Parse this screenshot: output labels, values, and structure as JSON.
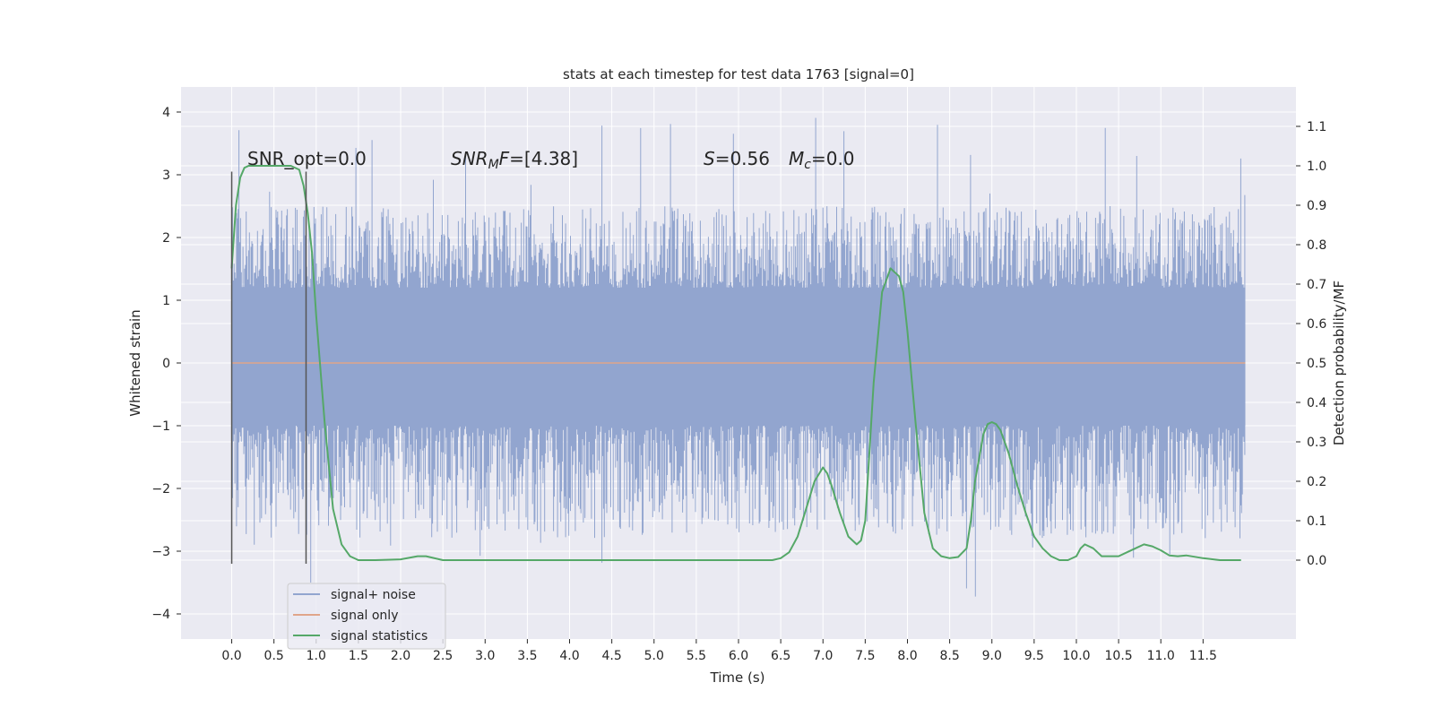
{
  "colors": {
    "background": "#eaeaf2",
    "grid": "#ffffff",
    "noise": "#92a5cf",
    "signal": "#e0a58a",
    "statistics": "#55a868",
    "marker": "#555555",
    "text": "#262626"
  },
  "chart_data": {
    "type": "line",
    "title": "stats at each timestep for test data 1763 [signal=0]",
    "xlabel": "Time (s)",
    "ylabel_left": "Whitened strain",
    "ylabel_right": "Detection probability/MF",
    "xlim": [
      -0.6,
      12.6
    ],
    "ylim_left": [
      -4.4,
      4.4
    ],
    "ylim_right": [
      -0.2,
      1.2
    ],
    "xticks": [
      "0.0",
      "0.5",
      "1.0",
      "1.5",
      "2.0",
      "2.5",
      "3.0",
      "3.5",
      "4.0",
      "4.5",
      "5.0",
      "5.5",
      "6.0",
      "6.5",
      "7.0",
      "7.5",
      "8.0",
      "8.5",
      "9.0",
      "9.5",
      "10.0",
      "10.5",
      "11.0",
      "11.5"
    ],
    "yticks_left": [
      "4",
      "3",
      "2",
      "1",
      "0",
      "−1",
      "−2",
      "−3",
      "−4"
    ],
    "yticks_right": [
      "1.1",
      "1.0",
      "0.9",
      "0.8",
      "0.7",
      "0.6",
      "0.5",
      "0.4",
      "0.3",
      "0.2",
      "0.1",
      "0.0"
    ],
    "grid": true,
    "legend_position": "lower-left",
    "annotations": {
      "snr_opt": "SNR_opt=0.0",
      "snr_mf_sym": "SNR",
      "snr_mf_sub": "M",
      "snr_mf_tail": "F",
      "snr_mf_value": "=[4.38]",
      "s_sym": "S",
      "s_value": "=0.56",
      "mc_sym": "M",
      "mc_sub": "c",
      "mc_value": "=0.0"
    },
    "markers_x": [
      0.0,
      0.88
    ],
    "markers_y": [
      -3.2,
      3.05
    ],
    "series": [
      {
        "name": "signal+ noise",
        "type": "noise",
        "x_range": [
          0.0,
          12.0
        ],
        "core_lower": -1.0,
        "core_upper": 1.2,
        "envelope_min": -4.05,
        "envelope_max": 3.95
      },
      {
        "name": "signal only",
        "type": "constant",
        "x_range": [
          0.0,
          12.0
        ],
        "value": 0.0
      },
      {
        "name": "signal statistics",
        "type": "line",
        "axis": "right",
        "x": [
          0.0,
          0.05,
          0.1,
          0.15,
          0.2,
          0.3,
          0.5,
          0.7,
          0.8,
          0.85,
          0.9,
          0.95,
          1.0,
          1.1,
          1.2,
          1.3,
          1.4,
          1.5,
          1.7,
          2.0,
          2.2,
          2.3,
          2.5,
          3.0,
          4.0,
          4.3,
          4.5,
          5.0,
          5.5,
          6.0,
          6.4,
          6.5,
          6.6,
          6.7,
          6.8,
          6.9,
          7.0,
          7.05,
          7.1,
          7.2,
          7.3,
          7.4,
          7.45,
          7.5,
          7.6,
          7.7,
          7.8,
          7.85,
          7.9,
          7.95,
          8.0,
          8.1,
          8.2,
          8.3,
          8.4,
          8.5,
          8.6,
          8.7,
          8.75,
          8.8,
          8.9,
          8.95,
          9.0,
          9.05,
          9.1,
          9.2,
          9.3,
          9.4,
          9.5,
          9.6,
          9.7,
          9.8,
          9.9,
          10.0,
          10.05,
          10.1,
          10.2,
          10.3,
          10.5,
          10.6,
          10.7,
          10.8,
          10.9,
          11.0,
          11.1,
          11.2,
          11.3,
          11.5,
          11.7,
          11.9,
          11.95
        ],
        "values": [
          0.74,
          0.9,
          0.97,
          0.995,
          1.0,
          1.0,
          1.0,
          1.0,
          0.99,
          0.95,
          0.88,
          0.78,
          0.62,
          0.35,
          0.13,
          0.04,
          0.01,
          0.0,
          0.0,
          0.002,
          0.01,
          0.01,
          0.0,
          0.0,
          0.0,
          0.0,
          0.0,
          0.0,
          0.0,
          0.0,
          0.0,
          0.005,
          0.02,
          0.06,
          0.13,
          0.2,
          0.235,
          0.22,
          0.19,
          0.12,
          0.06,
          0.04,
          0.05,
          0.1,
          0.45,
          0.68,
          0.74,
          0.73,
          0.72,
          0.68,
          0.58,
          0.34,
          0.12,
          0.03,
          0.01,
          0.005,
          0.008,
          0.03,
          0.1,
          0.2,
          0.32,
          0.345,
          0.35,
          0.345,
          0.33,
          0.27,
          0.19,
          0.12,
          0.06,
          0.03,
          0.01,
          0.0,
          0.0,
          0.01,
          0.03,
          0.04,
          0.03,
          0.01,
          0.01,
          0.02,
          0.03,
          0.04,
          0.035,
          0.025,
          0.012,
          0.01,
          0.012,
          0.005,
          0.0,
          0.0,
          0.0
        ]
      }
    ]
  }
}
